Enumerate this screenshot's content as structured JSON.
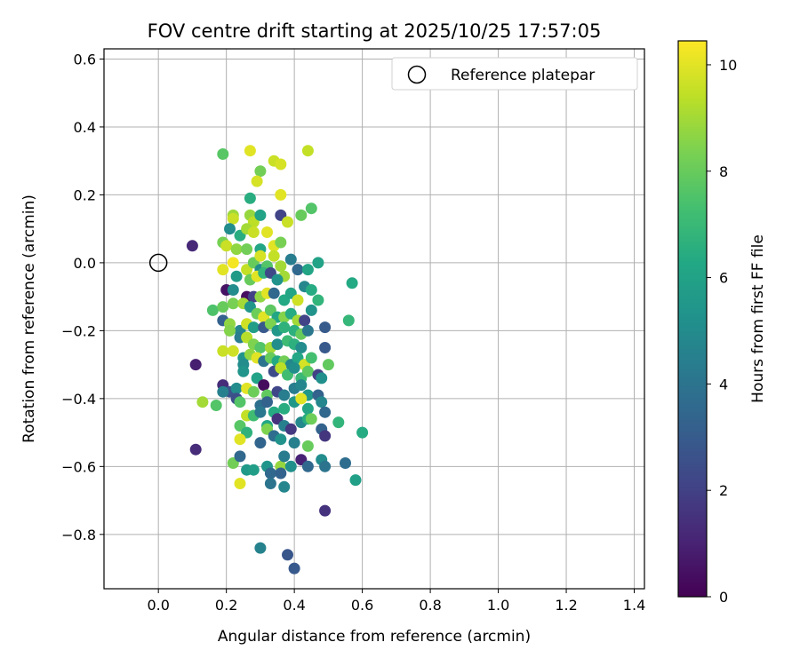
{
  "chart_data": {
    "type": "scatter",
    "title": "FOV centre drift starting at 2025/10/25 17:57:05",
    "xlabel": "Angular distance from reference (arcmin)",
    "ylabel": "Rotation from reference (arcmin)",
    "xlim": [
      -0.16,
      1.43
    ],
    "ylim": [
      -0.96,
      0.63
    ],
    "xticks": [
      0.0,
      0.2,
      0.4,
      0.6,
      0.8,
      1.0,
      1.2,
      1.4
    ],
    "yticks": [
      0.6,
      0.4,
      0.2,
      0.0,
      -0.2,
      -0.4,
      -0.6,
      -0.8
    ],
    "xtick_labels": [
      "0.0",
      "0.2",
      "0.4",
      "0.6",
      "0.8",
      "1.0",
      "1.2",
      "1.4"
    ],
    "ytick_labels": [
      "0.6",
      "0.4",
      "0.2",
      "0.0",
      "−0.2",
      "−0.4",
      "−0.6",
      "−0.8"
    ],
    "grid": true,
    "legend": {
      "placement": "top-right",
      "entries": [
        {
          "label": "Reference platepar",
          "marker": "open-circle"
        }
      ]
    },
    "reference_point": {
      "x": 0.0,
      "y": 0.0
    },
    "colorbar": {
      "label": "Hours from first FF file",
      "colormap": "viridis",
      "range": [
        0,
        10.45
      ],
      "ticks": [
        0,
        2,
        4,
        6,
        8,
        10
      ],
      "tick_labels": [
        "0",
        "2",
        "4",
        "6",
        "8",
        "10"
      ]
    },
    "points": [
      [
        0.1,
        0.05,
        1.2
      ],
      [
        0.11,
        -0.3,
        0.9
      ],
      [
        0.11,
        -0.55,
        1.3
      ],
      [
        0.19,
        0.32,
        7.7
      ],
      [
        0.27,
        0.33,
        10.0
      ],
      [
        0.44,
        0.33,
        9.5
      ],
      [
        0.34,
        0.3,
        9.6
      ],
      [
        0.3,
        0.27,
        8.2
      ],
      [
        0.36,
        0.29,
        9.8
      ],
      [
        0.29,
        0.24,
        9.8
      ],
      [
        0.36,
        0.2,
        10.0
      ],
      [
        0.27,
        0.19,
        6.5
      ],
      [
        0.45,
        0.16,
        7.6
      ],
      [
        0.42,
        0.14,
        8.0
      ],
      [
        0.36,
        0.14,
        2.1
      ],
      [
        0.22,
        0.14,
        8.9
      ],
      [
        0.22,
        0.13,
        9.6
      ],
      [
        0.27,
        0.14,
        8.8
      ],
      [
        0.28,
        0.12,
        9.4
      ],
      [
        0.3,
        0.14,
        6.0
      ],
      [
        0.38,
        0.12,
        9.6
      ],
      [
        0.21,
        0.1,
        5.0
      ],
      [
        0.24,
        0.08,
        6.5
      ],
      [
        0.26,
        0.1,
        9.0
      ],
      [
        0.28,
        0.09,
        9.6
      ],
      [
        0.32,
        0.09,
        10.0
      ],
      [
        0.19,
        0.06,
        8.3
      ],
      [
        0.2,
        0.05,
        9.6
      ],
      [
        0.23,
        0.04,
        8.7
      ],
      [
        0.26,
        0.04,
        8.2
      ],
      [
        0.3,
        0.04,
        6.2
      ],
      [
        0.34,
        0.05,
        10.0
      ],
      [
        0.36,
        0.06,
        8.3
      ],
      [
        0.19,
        -0.02,
        10.0
      ],
      [
        0.22,
        0.0,
        10.3
      ],
      [
        0.26,
        -0.02,
        9.5
      ],
      [
        0.28,
        0.0,
        8.0
      ],
      [
        0.3,
        0.02,
        9.8
      ],
      [
        0.3,
        -0.02,
        5.1
      ],
      [
        0.32,
        -0.01,
        7.6
      ],
      [
        0.34,
        0.02,
        9.5
      ],
      [
        0.36,
        -0.01,
        9.0
      ],
      [
        0.37,
        -0.04,
        9.0
      ],
      [
        0.39,
        0.01,
        4.4
      ],
      [
        0.41,
        -0.02,
        3.5
      ],
      [
        0.44,
        -0.02,
        6.1
      ],
      [
        0.47,
        0.0,
        6.0
      ],
      [
        0.23,
        -0.04,
        5.7
      ],
      [
        0.27,
        -0.05,
        8.0
      ],
      [
        0.29,
        -0.04,
        10.0
      ],
      [
        0.31,
        -0.03,
        6.8
      ],
      [
        0.33,
        -0.03,
        2.3
      ],
      [
        0.35,
        -0.05,
        5.3
      ],
      [
        0.2,
        -0.08,
        0.5
      ],
      [
        0.22,
        -0.08,
        5.0
      ],
      [
        0.26,
        -0.1,
        0.4
      ],
      [
        0.28,
        -0.1,
        2.0
      ],
      [
        0.3,
        -0.1,
        8.7
      ],
      [
        0.32,
        -0.09,
        10.0
      ],
      [
        0.34,
        -0.09,
        3.5
      ],
      [
        0.37,
        -0.11,
        6.3
      ],
      [
        0.39,
        -0.09,
        6.1
      ],
      [
        0.41,
        -0.11,
        9.7
      ],
      [
        0.43,
        -0.07,
        4.8
      ],
      [
        0.45,
        -0.08,
        6.4
      ],
      [
        0.47,
        -0.11,
        6.8
      ],
      [
        0.57,
        -0.06,
        6.3
      ],
      [
        0.16,
        -0.14,
        7.5
      ],
      [
        0.19,
        -0.13,
        8.0
      ],
      [
        0.22,
        -0.12,
        8.3
      ],
      [
        0.25,
        -0.12,
        9.0
      ],
      [
        0.27,
        -0.13,
        5.5
      ],
      [
        0.29,
        -0.15,
        8.1
      ],
      [
        0.31,
        -0.16,
        10.0
      ],
      [
        0.33,
        -0.14,
        7.8
      ],
      [
        0.35,
        -0.16,
        6.2
      ],
      [
        0.37,
        -0.16,
        8.5
      ],
      [
        0.39,
        -0.15,
        6.4
      ],
      [
        0.41,
        -0.17,
        9.0
      ],
      [
        0.43,
        -0.17,
        2.1
      ],
      [
        0.45,
        -0.14,
        5.3
      ],
      [
        0.49,
        -0.19,
        3.0
      ],
      [
        0.56,
        -0.17,
        6.9
      ],
      [
        0.19,
        -0.17,
        3.2
      ],
      [
        0.21,
        -0.18,
        8.7
      ],
      [
        0.24,
        -0.2,
        4.8
      ],
      [
        0.26,
        -0.18,
        9.7
      ],
      [
        0.28,
        -0.19,
        5.8
      ],
      [
        0.31,
        -0.19,
        2.9
      ],
      [
        0.33,
        -0.18,
        8.4
      ],
      [
        0.35,
        -0.2,
        5.5
      ],
      [
        0.37,
        -0.19,
        6.7
      ],
      [
        0.4,
        -0.2,
        6.6
      ],
      [
        0.42,
        -0.21,
        8.0
      ],
      [
        0.44,
        -0.2,
        4.2
      ],
      [
        0.21,
        -0.2,
        8.5
      ],
      [
        0.24,
        -0.22,
        4.4
      ],
      [
        0.26,
        -0.22,
        9.3
      ],
      [
        0.28,
        -0.24,
        8.4
      ],
      [
        0.3,
        -0.25,
        7.6
      ],
      [
        0.33,
        -0.25,
        9.0
      ],
      [
        0.35,
        -0.24,
        5.1
      ],
      [
        0.38,
        -0.23,
        7.1
      ],
      [
        0.4,
        -0.24,
        6.6
      ],
      [
        0.42,
        -0.25,
        5.0
      ],
      [
        0.19,
        -0.26,
        9.6
      ],
      [
        0.22,
        -0.26,
        9.7
      ],
      [
        0.25,
        -0.28,
        5.4
      ],
      [
        0.27,
        -0.27,
        8.7
      ],
      [
        0.29,
        -0.28,
        10.0
      ],
      [
        0.31,
        -0.29,
        4.0
      ],
      [
        0.33,
        -0.28,
        8.0
      ],
      [
        0.35,
        -0.29,
        6.3
      ],
      [
        0.37,
        -0.29,
        8.2
      ],
      [
        0.39,
        -0.3,
        4.8
      ],
      [
        0.41,
        -0.28,
        6.2
      ],
      [
        0.43,
        -0.3,
        9.8
      ],
      [
        0.45,
        -0.28,
        7.3
      ],
      [
        0.49,
        -0.25,
        2.9
      ],
      [
        0.5,
        -0.3,
        7.9
      ],
      [
        0.25,
        -0.3,
        5.0
      ],
      [
        0.25,
        -0.32,
        5.4
      ],
      [
        0.29,
        -0.34,
        6.0
      ],
      [
        0.34,
        -0.32,
        2.4
      ],
      [
        0.36,
        -0.31,
        9.4
      ],
      [
        0.38,
        -0.33,
        7.2
      ],
      [
        0.4,
        -0.31,
        5.1
      ],
      [
        0.42,
        -0.34,
        7.0
      ],
      [
        0.44,
        -0.32,
        7.8
      ],
      [
        0.47,
        -0.33,
        2.0
      ],
      [
        0.48,
        -0.34,
        5.2
      ],
      [
        0.19,
        -0.36,
        1.3
      ],
      [
        0.21,
        -0.38,
        2.7
      ],
      [
        0.23,
        -0.37,
        5.0
      ],
      [
        0.26,
        -0.37,
        10.0
      ],
      [
        0.28,
        -0.38,
        8.1
      ],
      [
        0.31,
        -0.36,
        0.3
      ],
      [
        0.32,
        -0.39,
        7.9
      ],
      [
        0.35,
        -0.38,
        2.2
      ],
      [
        0.37,
        -0.39,
        4.4
      ],
      [
        0.4,
        -0.37,
        4.4
      ],
      [
        0.42,
        -0.36,
        4.8
      ],
      [
        0.44,
        -0.39,
        5.5
      ],
      [
        0.19,
        -0.38,
        4.5
      ],
      [
        0.13,
        -0.41,
        9.0
      ],
      [
        0.17,
        -0.42,
        7.6
      ],
      [
        0.23,
        -0.4,
        2.5
      ],
      [
        0.24,
        -0.41,
        7.6
      ],
      [
        0.3,
        -0.42,
        3.8
      ],
      [
        0.32,
        -0.41,
        3.3
      ],
      [
        0.34,
        -0.44,
        6.4
      ],
      [
        0.37,
        -0.43,
        6.5
      ],
      [
        0.4,
        -0.41,
        5.5
      ],
      [
        0.42,
        -0.4,
        10.0
      ],
      [
        0.44,
        -0.43,
        6.1
      ],
      [
        0.47,
        -0.39,
        3.3
      ],
      [
        0.48,
        -0.41,
        4.8
      ],
      [
        0.49,
        -0.44,
        3.5
      ],
      [
        0.26,
        -0.45,
        9.5
      ],
      [
        0.28,
        -0.45,
        7.2
      ],
      [
        0.3,
        -0.44,
        4.2
      ],
      [
        0.32,
        -0.48,
        6.2
      ],
      [
        0.35,
        -0.46,
        1.5
      ],
      [
        0.37,
        -0.48,
        4.5
      ],
      [
        0.39,
        -0.49,
        1.7
      ],
      [
        0.42,
        -0.47,
        4.9
      ],
      [
        0.44,
        -0.46,
        6.5
      ],
      [
        0.45,
        -0.46,
        8.1
      ],
      [
        0.48,
        -0.49,
        3.3
      ],
      [
        0.53,
        -0.47,
        6.8
      ],
      [
        0.24,
        -0.48,
        7.7
      ],
      [
        0.26,
        -0.5,
        6.7
      ],
      [
        0.3,
        -0.53,
        3.4
      ],
      [
        0.32,
        -0.49,
        8.4
      ],
      [
        0.34,
        -0.51,
        3.7
      ],
      [
        0.36,
        -0.52,
        5.3
      ],
      [
        0.4,
        -0.53,
        4.5
      ],
      [
        0.44,
        -0.54,
        8.0
      ],
      [
        0.49,
        -0.51,
        1.6
      ],
      [
        0.6,
        -0.5,
        6.4
      ],
      [
        0.24,
        -0.52,
        10.0
      ],
      [
        0.22,
        -0.59,
        8.2
      ],
      [
        0.24,
        -0.57,
        3.5
      ],
      [
        0.26,
        -0.61,
        5.6
      ],
      [
        0.28,
        -0.61,
        5.8
      ],
      [
        0.32,
        -0.6,
        5.4
      ],
      [
        0.33,
        -0.62,
        3.5
      ],
      [
        0.36,
        -0.6,
        8.8
      ],
      [
        0.37,
        -0.57,
        4.3
      ],
      [
        0.39,
        -0.6,
        5.2
      ],
      [
        0.42,
        -0.58,
        1.0
      ],
      [
        0.44,
        -0.6,
        3.5
      ],
      [
        0.48,
        -0.58,
        5.0
      ],
      [
        0.49,
        -0.6,
        4.0
      ],
      [
        0.55,
        -0.59,
        3.7
      ],
      [
        0.58,
        -0.64,
        5.9
      ],
      [
        0.24,
        -0.65,
        10.0
      ],
      [
        0.33,
        -0.65,
        4.0
      ],
      [
        0.36,
        -0.62,
        3.3
      ],
      [
        0.37,
        -0.66,
        4.8
      ],
      [
        0.49,
        -0.73,
        1.5
      ],
      [
        0.3,
        -0.84,
        4.6
      ],
      [
        0.38,
        -0.86,
        2.8
      ],
      [
        0.4,
        -0.9,
        2.9
      ]
    ]
  }
}
